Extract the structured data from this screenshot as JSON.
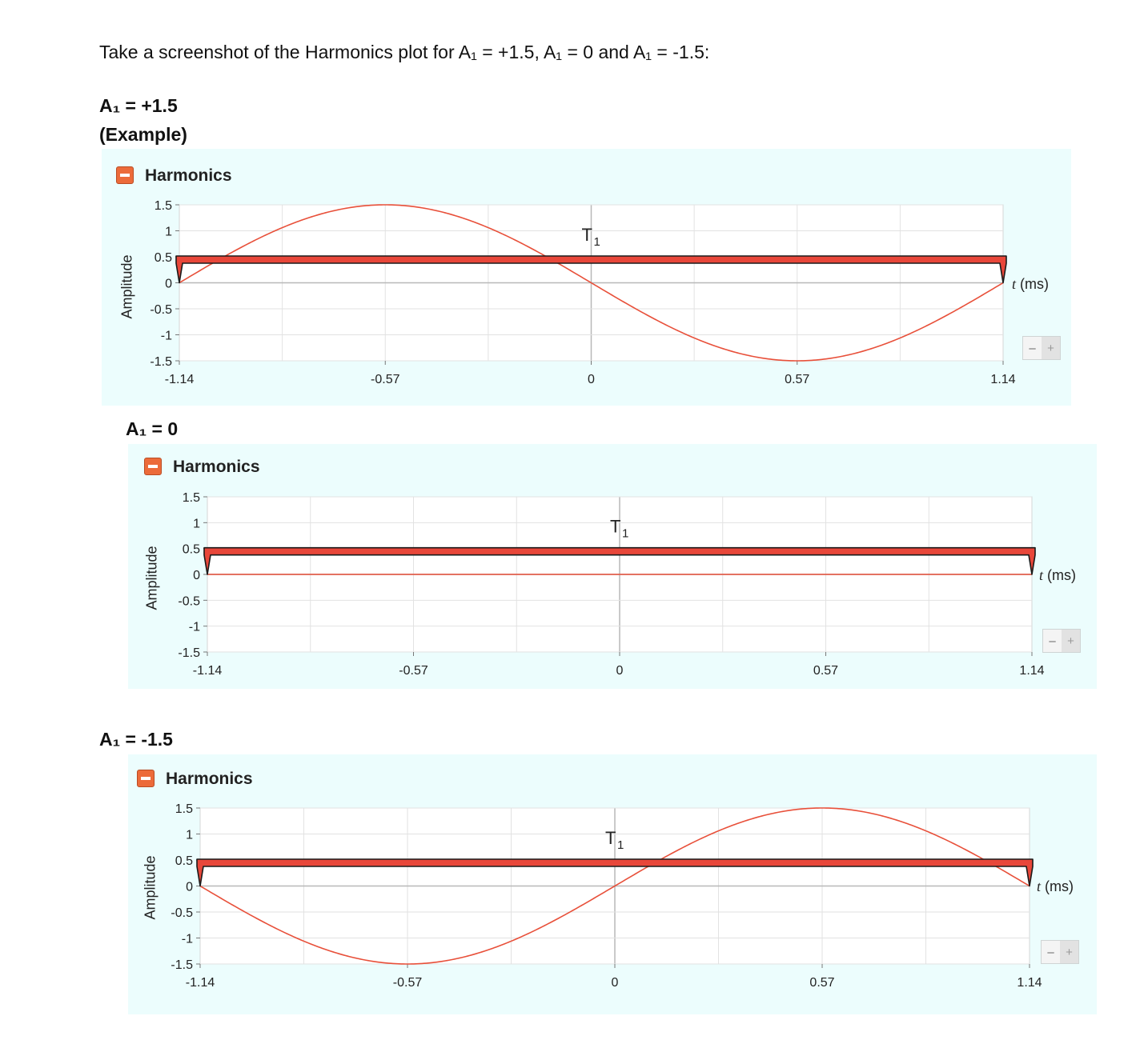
{
  "intro": "Take a screenshot of the Harmonics plot for A₁ = +1.5, A₁ = 0 and A₁ = -1.5:",
  "headings": {
    "h1": "A₁ = +1.5",
    "h1_sub": "(Example)",
    "h2": "A₁ = 0",
    "h3": "A₁ = -1.5"
  },
  "panels": [
    {
      "title": "Harmonics",
      "ylabel": "Amplitude",
      "tlabel_var": "t",
      "tlabel_unit": " (ms)",
      "zoom_out": "–",
      "zoom_in": "+"
    },
    {
      "title": "Harmonics",
      "ylabel": "Amplitude",
      "tlabel_var": "t",
      "tlabel_unit": " (ms)",
      "zoom_out": "–",
      "zoom_in": "+"
    },
    {
      "title": "Harmonics",
      "ylabel": "Amplitude",
      "tlabel_var": "t",
      "tlabel_unit": " (ms)",
      "zoom_out": "–",
      "zoom_in": "+"
    }
  ],
  "colors": {
    "curve": "#e8503a",
    "period_bar": "#e8473a",
    "panel_bg": "#ecfdfd",
    "button": "#ec6b3a"
  },
  "chart_data": [
    {
      "type": "line",
      "title": "Harmonics",
      "ylabel": "Amplitude",
      "xlabel": "t (ms)",
      "xlim": [
        -1.14,
        1.14
      ],
      "ylim": [
        -1.5,
        1.5
      ],
      "xticks": [
        "-1.14",
        "-0.57",
        "0",
        "0.57",
        "1.14"
      ],
      "yticks": [
        "1.5",
        "1",
        "0.5",
        "0",
        "-0.5",
        "-1",
        "-1.5"
      ],
      "grid": true,
      "amplitude": 1.5,
      "period_ms": 2.28,
      "period_marker": {
        "label": "T",
        "subscript": "1",
        "from": -1.14,
        "to": 1.14,
        "y": 0.5
      },
      "series": [
        {
          "amplitude": 1.5
        }
      ]
    },
    {
      "type": "line",
      "title": "Harmonics",
      "ylabel": "Amplitude",
      "xlabel": "t (ms)",
      "xlim": [
        -1.14,
        1.14
      ],
      "ylim": [
        -1.5,
        1.5
      ],
      "xticks": [
        "-1.14",
        "-0.57",
        "0",
        "0.57",
        "1.14"
      ],
      "yticks": [
        "1.5",
        "1",
        "0.5",
        "0",
        "-0.5",
        "-1",
        "-1.5"
      ],
      "grid": true,
      "amplitude": 0,
      "period_ms": 2.28,
      "period_marker": {
        "label": "T",
        "subscript": "1",
        "from": -1.14,
        "to": 1.14,
        "y": 0.5
      },
      "series": [
        {
          "amplitude": 0
        }
      ]
    },
    {
      "type": "line",
      "title": "Harmonics",
      "ylabel": "Amplitude",
      "xlabel": "t (ms)",
      "xlim": [
        -1.14,
        1.14
      ],
      "ylim": [
        -1.5,
        1.5
      ],
      "xticks": [
        "-1.14",
        "-0.57",
        "0",
        "0.57",
        "1.14"
      ],
      "yticks": [
        "1.5",
        "1",
        "0.5",
        "0",
        "-0.5",
        "-1",
        "-1.5"
      ],
      "grid": true,
      "amplitude": -1.5,
      "period_ms": 2.28,
      "period_marker": {
        "label": "T",
        "subscript": "1",
        "from": -1.14,
        "to": 1.14,
        "y": 0.5
      },
      "series": [
        {
          "amplitude": -1.5
        }
      ]
    }
  ]
}
